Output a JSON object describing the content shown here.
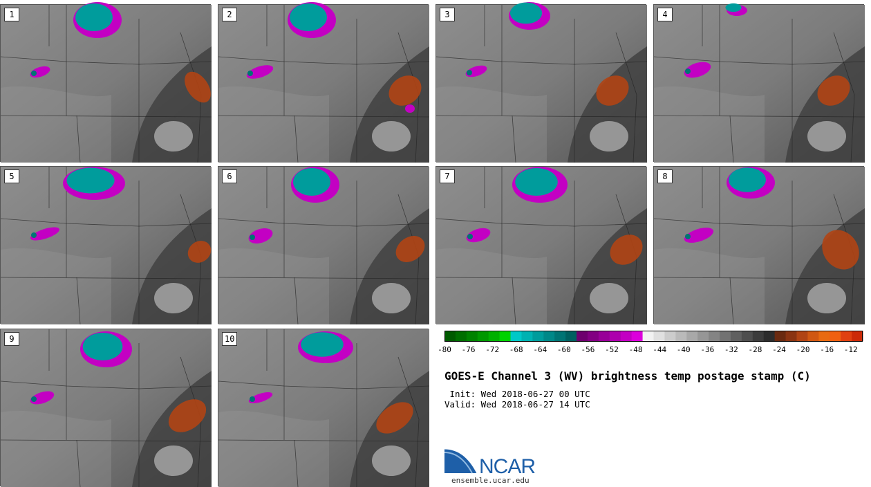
{
  "title": "GOES-E Channel 3 (WV) brightness temp postage stamp (C)",
  "init": " Init: Wed 2018-06-27 00 UTC",
  "valid": "Valid: Wed 2018-06-27 14 UTC",
  "logo_text": "NCAR",
  "logo_url": "ensemble.ucar.edu",
  "members": [
    "1",
    "2",
    "3",
    "4",
    "5",
    "6",
    "7",
    "8",
    "9",
    "10"
  ],
  "colorbar": {
    "min": -80,
    "max": -10,
    "step": 2,
    "tick_labels": [
      "-80",
      "-76",
      "-72",
      "-68",
      "-64",
      "-60",
      "-56",
      "-52",
      "-48",
      "-44",
      "-40",
      "-36",
      "-32",
      "-28",
      "-24",
      "-20",
      "-16",
      "-12"
    ],
    "colors": [
      "#005a00",
      "#006e00",
      "#008200",
      "#009800",
      "#00b000",
      "#00d200",
      "#00c8c8",
      "#00b2b2",
      "#009c9c",
      "#008888",
      "#007474",
      "#006060",
      "#6e006e",
      "#820082",
      "#980098",
      "#ad00ad",
      "#c300c3",
      "#dc00dc",
      "#f2f2f2",
      "#e0e0e0",
      "#cccccc",
      "#bababa",
      "#a8a8a8",
      "#969696",
      "#848484",
      "#727272",
      "#606060",
      "#4e4e4e",
      "#3c3c3c",
      "#2c2c2c",
      "#6a2a10",
      "#8a3412",
      "#b04414",
      "#d05812",
      "#e86a10",
      "#f06010",
      "#e04010",
      "#cc2a08"
    ]
  }
}
